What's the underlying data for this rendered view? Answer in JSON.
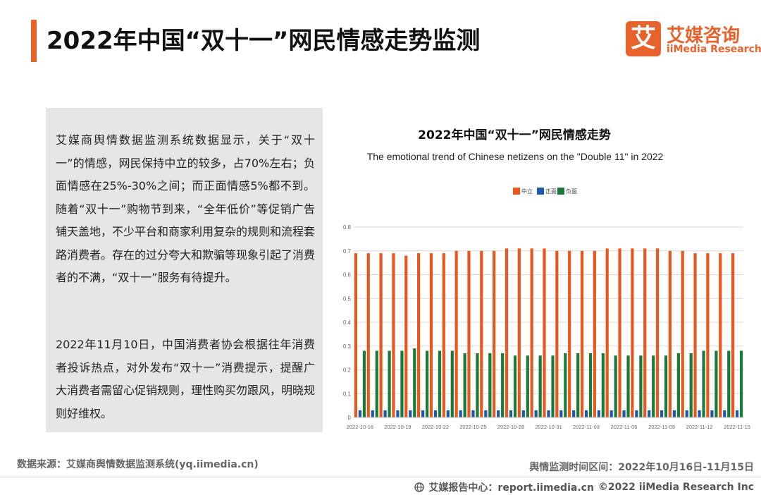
{
  "header": {
    "title": "2022年中国“双十一”网民情感走势监测",
    "logo_mark": "艾",
    "logo_cn": "艾媒咨询",
    "logo_en": "iiMedia Research",
    "accent_color": "#e8622c"
  },
  "text_panel": {
    "paragraph1": "艾媒商舆情数据监测系统数据显示，关于“双十一”的情感，网民保持中立的较多，占70%左右；负面情感在25%-30%之间；而正面情感5%都不到。随着“双十一”购物节到来，“全年低价”等促销广告铺天盖地，不少平台和商家利用复杂的规则和流程套路消费者。存在的过分夸大和欺骗等现象引起了消费者的不满，“双十一”服务有待提升。",
    "paragraph2": "2022年11月10日，中国消费者协会根据往年消费者投诉热点，对外发布“双十一”消费提示，提醒广大消费者需留心促销规则，理性购买勿跟风，明晓规则好维权。"
  },
  "chart_data": {
    "type": "bar",
    "title": "2022年中国“双十一”网民情感走势",
    "subtitle": "The emotional trend of Chinese netizens on the \"Double 11\" in 2022",
    "xlabel": "",
    "ylabel": "",
    "ylim": [
      0,
      0.8
    ],
    "yticks": [
      "0",
      "0.1",
      "0.2",
      "0.3",
      "0.4",
      "0.5",
      "0.6",
      "0.7",
      "0.8"
    ],
    "grid": true,
    "legend_position": "top-center",
    "categories": [
      "2022-10-16",
      "2022-10-17",
      "2022-10-18",
      "2022-10-19",
      "2022-10-20",
      "2022-10-21",
      "2022-10-22",
      "2022-10-23",
      "2022-10-24",
      "2022-10-25",
      "2022-10-26",
      "2022-10-27",
      "2022-10-28",
      "2022-10-29",
      "2022-10-30",
      "2022-10-31",
      "2022-11-01",
      "2022-11-02",
      "2022-11-03",
      "2022-11-04",
      "2022-11-05",
      "2022-11-06",
      "2022-11-07",
      "2022-11-08",
      "2022-11-09",
      "2022-11-10",
      "2022-11-11",
      "2022-11-12",
      "2022-11-13",
      "2022-11-14",
      "2022-11-15"
    ],
    "tick_labels": [
      "2022-10-16",
      "",
      "",
      "2022-10-19",
      "",
      "",
      "2022-10-22",
      "",
      "",
      "2022-10-25",
      "",
      "",
      "2022-10-28",
      "",
      "",
      "2022-10-31",
      "",
      "",
      "2022-11-03",
      "",
      "",
      "2022-11-06",
      "",
      "",
      "2022-11-09",
      "",
      "",
      "2022-11-12",
      "",
      "",
      "2022-11-15"
    ],
    "series": [
      {
        "name": "中立",
        "color": "#e8581c",
        "values": [
          0.69,
          0.69,
          0.69,
          0.69,
          0.68,
          0.69,
          0.69,
          0.69,
          0.7,
          0.7,
          0.7,
          0.7,
          0.71,
          0.71,
          0.71,
          0.71,
          0.7,
          0.7,
          0.7,
          0.7,
          0.71,
          0.71,
          0.71,
          0.71,
          0.71,
          0.7,
          0.7,
          0.69,
          0.69,
          0.69,
          0.69
        ]
      },
      {
        "name": "正面",
        "color": "#1e5aa8",
        "values": [
          0.03,
          0.03,
          0.03,
          0.03,
          0.03,
          0.03,
          0.03,
          0.03,
          0.03,
          0.03,
          0.03,
          0.03,
          0.03,
          0.03,
          0.03,
          0.03,
          0.03,
          0.03,
          0.03,
          0.03,
          0.03,
          0.03,
          0.03,
          0.03,
          0.03,
          0.03,
          0.03,
          0.03,
          0.03,
          0.03,
          0.03
        ]
      },
      {
        "name": "负面",
        "color": "#1a7a3a",
        "values": [
          0.28,
          0.28,
          0.28,
          0.28,
          0.29,
          0.28,
          0.28,
          0.28,
          0.27,
          0.27,
          0.27,
          0.27,
          0.26,
          0.26,
          0.26,
          0.26,
          0.27,
          0.27,
          0.27,
          0.27,
          0.26,
          0.26,
          0.26,
          0.26,
          0.26,
          0.27,
          0.27,
          0.28,
          0.28,
          0.28,
          0.28
        ]
      }
    ]
  },
  "footer": {
    "source": "数据来源：艾媒商舆情数据监测系统(yq.iimedia.cn)",
    "period": "舆情监测时间区间：2022年10月16日-11月15日",
    "report_center": "艾媒报告中心：report.iimedia.cn",
    "copyright": "©2022  iiMedia Research  Inc",
    "icon": "globe-icon"
  }
}
